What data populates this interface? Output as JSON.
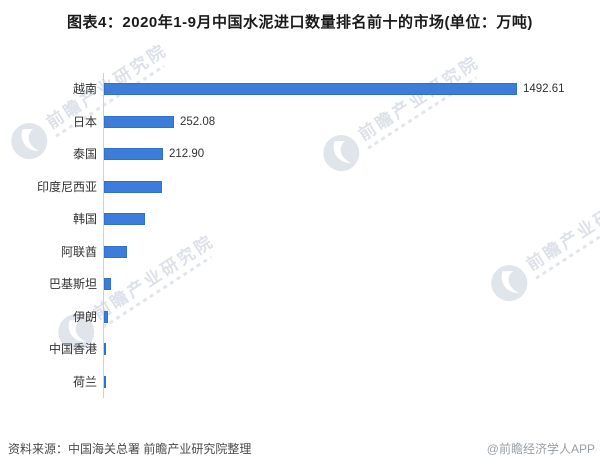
{
  "header": {
    "title": "图表4：2020年1-9月中国水泥进口数量排名前十的市场(单位：万吨)"
  },
  "chart_data": {
    "type": "bar",
    "orientation": "horizontal",
    "title": "图表4：2020年1-9月中国水泥进口数量排名前十的市场(单位：万吨)",
    "unit": "万吨",
    "categories": [
      "越南",
      "日本",
      "泰国",
      "印度尼西亚",
      "韩国",
      "阿联酋",
      "巴基斯坦",
      "伊朗",
      "中国香港",
      "荷兰"
    ],
    "values": [
      1492.61,
      252.08,
      212.9,
      209,
      148,
      84,
      24,
      16,
      9,
      7
    ],
    "value_labels": [
      "1492.61",
      "252.08",
      "212.90",
      "",
      "",
      "",
      "",
      "",
      "",
      ""
    ],
    "xlim": [
      0,
      1750
    ],
    "bar_color": "#3C7DD9",
    "grid": false,
    "legend": false
  },
  "footer": {
    "source": "资料来源：中国海关总署 前瞻产业研究院整理",
    "credit": "@前瞻经济学人APP"
  },
  "watermark": {
    "text": "前瞻产业研究院"
  }
}
